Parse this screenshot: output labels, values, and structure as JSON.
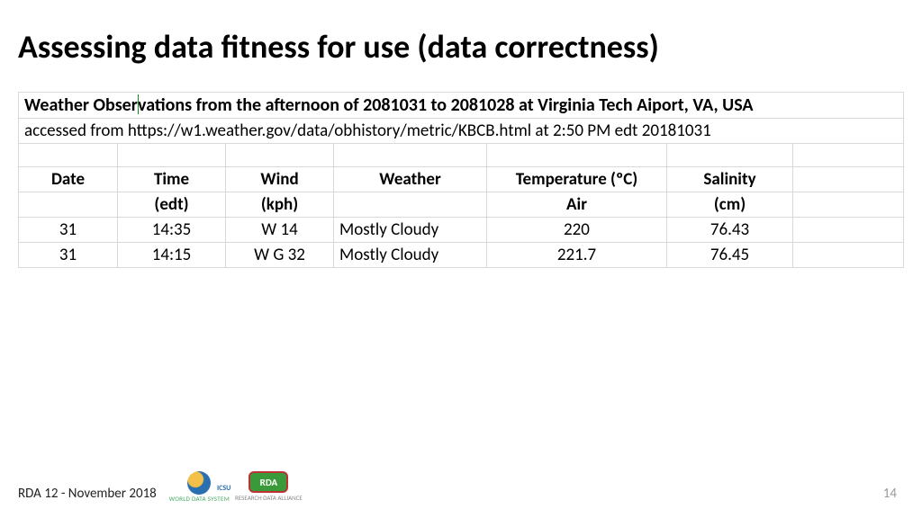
{
  "title": "Assessing data fitness for use (data correctness)",
  "table": {
    "caption_bold": "Weather Observations from the afternoon of 2081031 to 2081028 at Virginia Tech Aiport, VA, USA",
    "caption_sub": "accessed from https://w1.weather.gov/data/obhistory/metric/KBCB.html at 2:50 PM edt 20181031",
    "columns_row1": [
      "Date",
      "Time",
      "Wind",
      "Weather",
      "Temperature (ºC)",
      "Salinity",
      ""
    ],
    "columns_row2": [
      "",
      "(edt)",
      "(kph)",
      "",
      "Air",
      "(cm)",
      ""
    ],
    "rows": [
      [
        "31",
        "14:35",
        "W 14",
        "Mostly Cloudy",
        "220",
        "76.43",
        ""
      ],
      [
        "31",
        "14:15",
        "W G 32",
        "Mostly Cloudy",
        "221.7",
        "76.45",
        ""
      ]
    ],
    "border_color": "#d9d9d9",
    "font_size_body": 19,
    "font_size_header": 20
  },
  "footer": {
    "text": "RDA 12 - November 2018",
    "logo1_caption": "WORLD DATA SYSTEM",
    "logo2_text": "RDA",
    "logo2_caption": "RESEARCH DATA ALLIANCE"
  },
  "page_number": "14",
  "colors": {
    "title": "#000000",
    "grid": "#d9d9d9",
    "cursor": "#1a8a1a",
    "pagenum": "#9a9a9a",
    "rda_green": "#3a9a3a",
    "rda_border": "#b33333",
    "globe_land": "#f3c04a",
    "globe_sea": "#2a6fb0"
  }
}
